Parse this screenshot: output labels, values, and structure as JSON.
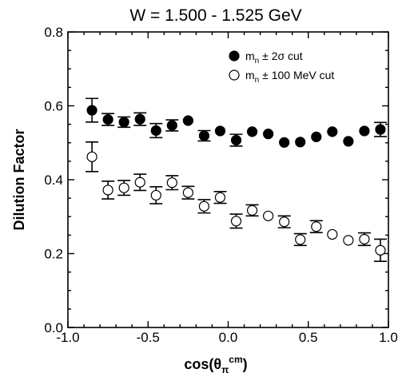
{
  "chart_data": {
    "type": "scatter",
    "title": "W = 1.500 - 1.525 GeV",
    "xlabel": {
      "base": "cos(θ",
      "sub": "π",
      "sup": "cm",
      "tail": ")"
    },
    "ylabel": "Dilution Factor",
    "xlim": [
      -1.0,
      1.0
    ],
    "ylim": [
      0.0,
      0.8
    ],
    "x_ticks": [
      "-1.0",
      "-0.5",
      "0.0",
      "0.5",
      "1.0"
    ],
    "y_ticks": [
      "0.0",
      "0.2",
      "0.4",
      "0.6",
      "0.8"
    ],
    "x_tick_values": [
      -1.0,
      -0.5,
      0.0,
      0.5,
      1.0
    ],
    "y_tick_values": [
      0.0,
      0.2,
      0.4,
      0.6,
      0.8
    ],
    "grid": false,
    "legend_position": "top-right",
    "series": [
      {
        "name": "m_n ± 2σ cut",
        "legend": {
          "pre": "m",
          "sub": "n",
          "post": " ± 2σ cut"
        },
        "marker": "filled-circle",
        "x": [
          -0.85,
          -0.75,
          -0.65,
          -0.55,
          -0.45,
          -0.35,
          -0.25,
          -0.15,
          -0.05,
          0.05,
          0.15,
          0.25,
          0.35,
          0.45,
          0.55,
          0.65,
          0.75,
          0.85,
          0.95
        ],
        "y": [
          0.588,
          0.563,
          0.556,
          0.564,
          0.533,
          0.547,
          0.56,
          0.519,
          0.532,
          0.507,
          0.53,
          0.524,
          0.501,
          0.502,
          0.516,
          0.53,
          0.504,
          0.532,
          0.536
        ],
        "err": [
          0.032,
          0.016,
          0.014,
          0.017,
          0.019,
          0.015,
          0.0,
          0.014,
          0.0,
          0.016,
          0.0,
          0.0,
          0.0,
          0.0,
          0.0,
          0.0,
          0.0,
          0.0,
          0.019
        ]
      },
      {
        "name": "m_n ± 100 MeV cut",
        "legend": {
          "pre": "m",
          "sub": "n",
          "post": " ± 100 MeV cut"
        },
        "marker": "open-circle",
        "x": [
          -0.85,
          -0.75,
          -0.65,
          -0.55,
          -0.45,
          -0.35,
          -0.25,
          -0.15,
          -0.05,
          0.05,
          0.15,
          0.25,
          0.35,
          0.45,
          0.55,
          0.65,
          0.75,
          0.85,
          0.95
        ],
        "y": [
          0.462,
          0.372,
          0.378,
          0.393,
          0.358,
          0.392,
          0.365,
          0.328,
          0.352,
          0.288,
          0.317,
          0.302,
          0.286,
          0.238,
          0.273,
          0.252,
          0.236,
          0.239,
          0.209
        ],
        "err": [
          0.04,
          0.024,
          0.02,
          0.022,
          0.023,
          0.019,
          0.017,
          0.018,
          0.016,
          0.019,
          0.015,
          0.0,
          0.016,
          0.016,
          0.016,
          0.0,
          0.0,
          0.017,
          0.03
        ]
      }
    ]
  }
}
